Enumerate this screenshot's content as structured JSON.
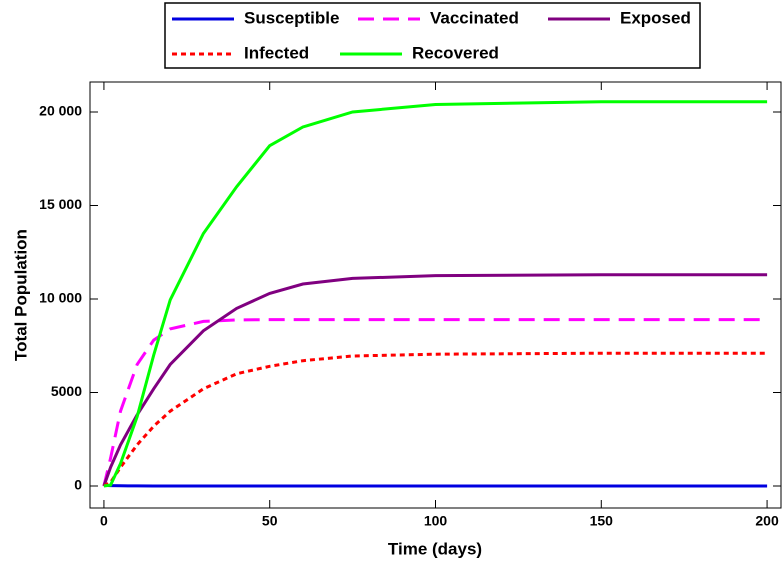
{
  "chart_data": {
    "type": "line",
    "x_label": "Time (days)",
    "y_label": "Total Population",
    "x": [
      0,
      2,
      5,
      10,
      15,
      20,
      30,
      40,
      50,
      60,
      75,
      100,
      150,
      200
    ],
    "series": [
      {
        "name": "Susceptible",
        "color": "#0000e0",
        "style": "solid",
        "values": [
          30,
          20,
          10,
          5,
          3,
          2,
          1,
          1,
          0,
          0,
          0,
          0,
          0,
          0
        ]
      },
      {
        "name": "Vaccinated",
        "color": "#ff00ff",
        "style": "dashed",
        "values": [
          0,
          1500,
          4000,
          6500,
          7800,
          8400,
          8800,
          8880,
          8900,
          8900,
          8900,
          8900,
          8900,
          8900
        ]
      },
      {
        "name": "Exposed",
        "color": "#800080",
        "style": "solid",
        "values": [
          0,
          1000,
          2200,
          3800,
          5200,
          6500,
          8300,
          9500,
          10300,
          10800,
          11100,
          11250,
          11300,
          11300
        ]
      },
      {
        "name": "Infected",
        "color": "#ff0000",
        "style": "dotted",
        "values": [
          0,
          200,
          1000,
          2200,
          3200,
          4000,
          5200,
          6000,
          6400,
          6700,
          6950,
          7050,
          7100,
          7100
        ]
      },
      {
        "name": "Recovered",
        "color": "#00ff00",
        "style": "solid",
        "values": [
          0,
          50,
          1200,
          3700,
          7000,
          9950,
          13500,
          16000,
          18200,
          19200,
          20000,
          20400,
          20550,
          20550
        ]
      }
    ],
    "xlim": [
      -4.2,
      204.2
    ],
    "ylim": [
      -1176,
      21604
    ],
    "xticks": [
      0,
      50,
      100,
      150,
      200
    ],
    "yticks": [
      0,
      5000,
      {
        "value": 10000,
        "label": "10 000"
      },
      {
        "value": 15000,
        "label": "15 000"
      },
      {
        "value": 20000,
        "label": "20 000"
      }
    ]
  }
}
